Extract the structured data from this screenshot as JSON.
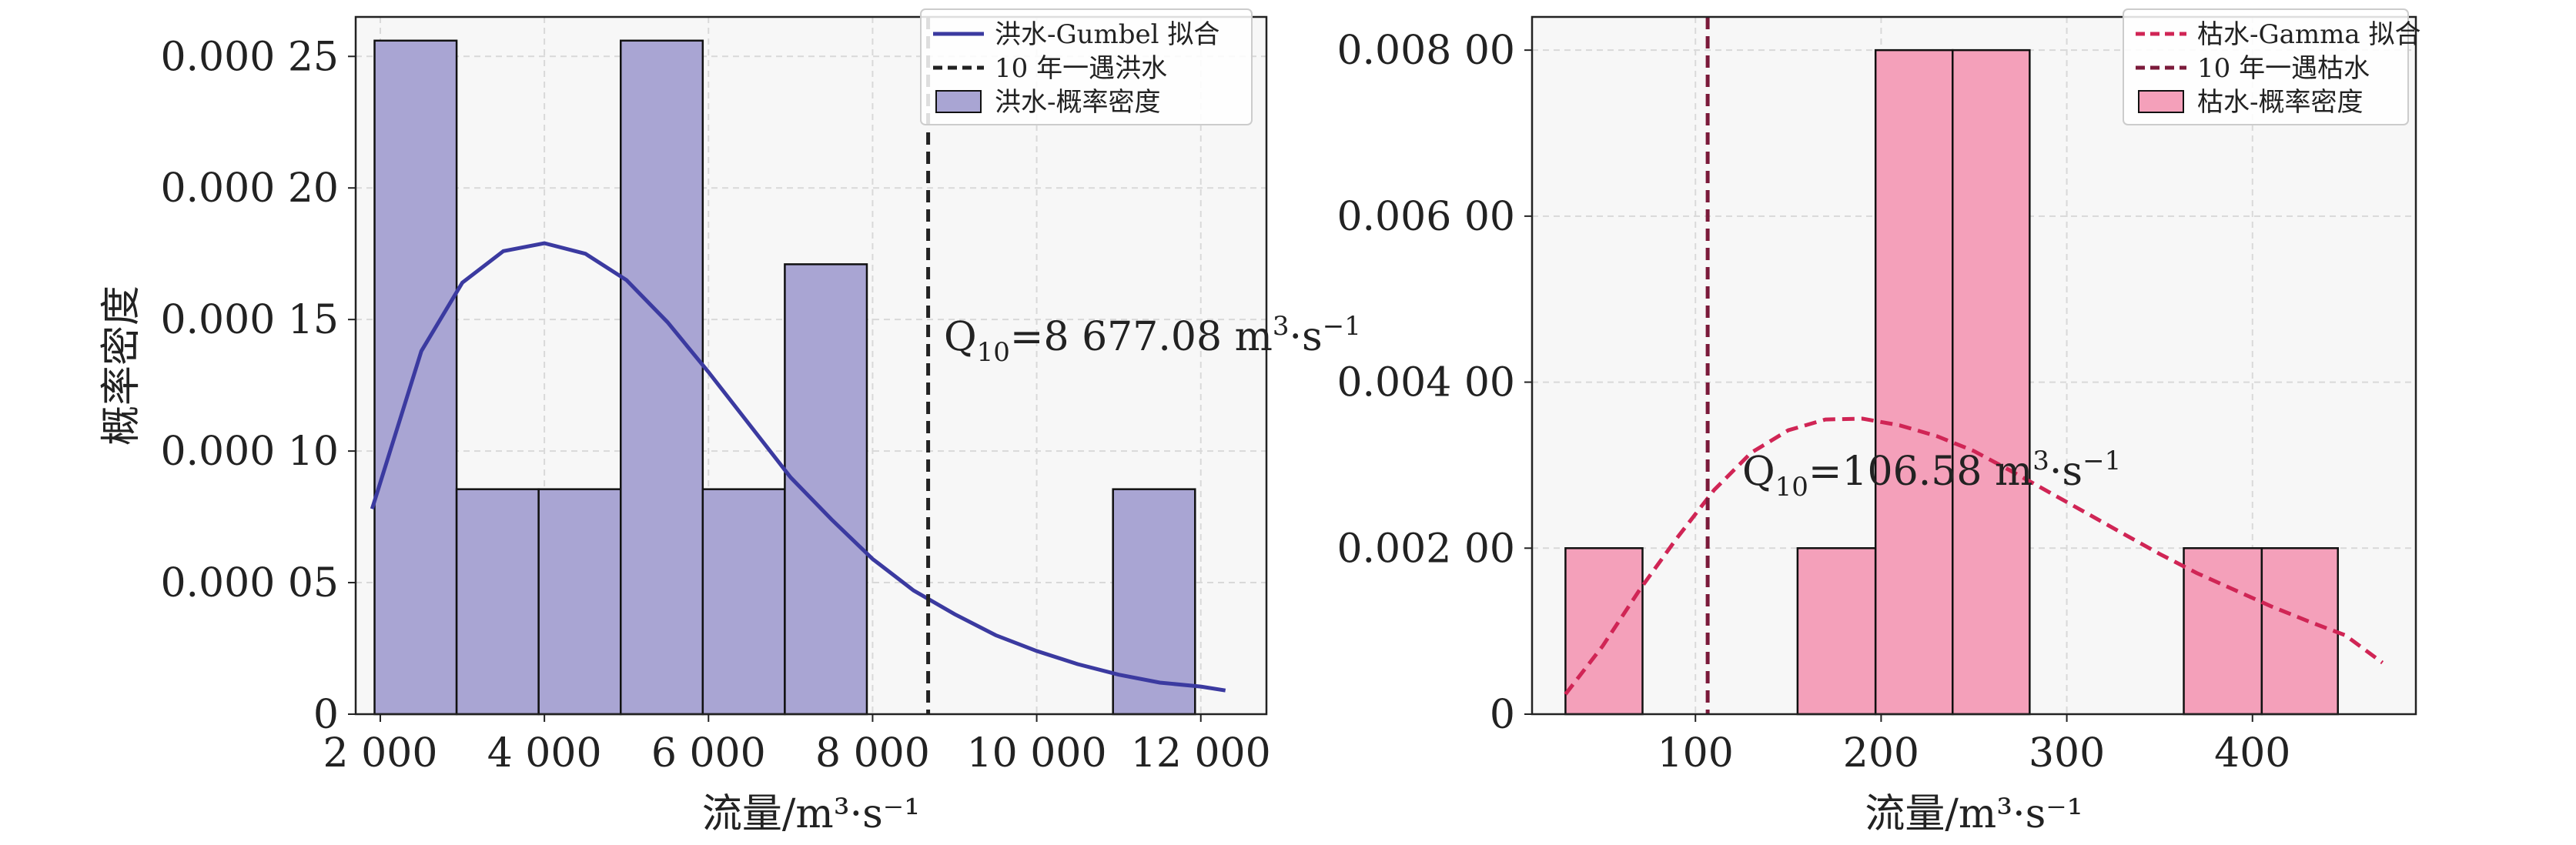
{
  "chart_data": [
    {
      "type": "histogram",
      "panel": "left",
      "xlabel": "流量/m³·s⁻¹",
      "ylabel": "概率密度",
      "xlim": [
        1700,
        12800
      ],
      "ylim": [
        0,
        0.000265
      ],
      "grid": true,
      "legend_position": "top-right",
      "xticks": [
        2000,
        4000,
        6000,
        8000,
        10000,
        12000
      ],
      "xtick_labels": [
        "2 000",
        "4 000",
        "6 000",
        "8 000",
        "10 000",
        "12 000"
      ],
      "yticks": [
        0,
        5e-05,
        0.0001,
        0.00015,
        0.0002,
        0.00025
      ],
      "ytick_labels": [
        "0",
        "0.000 05",
        "0.000 10",
        "0.000 15",
        "0.000 20",
        "0.000 25"
      ],
      "bins": [
        {
          "x0": 1930,
          "x1": 2930,
          "density": 0.000256
        },
        {
          "x0": 2930,
          "x1": 3930,
          "density": 8.55e-05
        },
        {
          "x0": 3930,
          "x1": 4930,
          "density": 8.55e-05
        },
        {
          "x0": 4930,
          "x1": 5930,
          "density": 0.000256
        },
        {
          "x0": 5930,
          "x1": 6930,
          "density": 8.55e-05
        },
        {
          "x0": 6930,
          "x1": 7930,
          "density": 0.000171
        },
        {
          "x0": 10930,
          "x1": 11930,
          "density": 8.55e-05
        }
      ],
      "fit_curve": {
        "name": "洪水-Gumbel 拟合",
        "color": "#3b3aa0",
        "x": [
          1900,
          2500,
          3000,
          3500,
          4000,
          4500,
          5000,
          5500,
          6000,
          6500,
          7000,
          7500,
          8000,
          8500,
          9000,
          9500,
          10000,
          10500,
          11000,
          11500,
          12000,
          12300
        ],
        "y": [
          7.8e-05,
          0.000138,
          0.000164,
          0.000176,
          0.000179,
          0.000175,
          0.000165,
          0.000149,
          0.00013,
          0.00011,
          9e-05,
          7.4e-05,
          5.9e-05,
          4.7e-05,
          3.8e-05,
          3e-05,
          2.4e-05,
          1.9e-05,
          1.5e-05,
          1.2e-05,
          1.05e-05,
          9e-06
        ]
      },
      "vline": {
        "name": "10 年一遇洪水",
        "x": 8677.08,
        "color": "#222222"
      },
      "annotation": {
        "prefix": "Q",
        "sub": "10",
        "value_text": "=8 677.08 m",
        "sup": "3",
        "unit_tail": "·s",
        "sup2": "−1"
      },
      "legend": [
        {
          "label": "洪水-Gumbel 拟合",
          "kind": "line",
          "color": "#3b3aa0"
        },
        {
          "label": "10 年一遇洪水",
          "kind": "dash",
          "color": "#222222"
        },
        {
          "label": "洪水-概率密度",
          "kind": "patch",
          "color": "#a9a5d3"
        }
      ],
      "bar_color": "#a9a5d3"
    },
    {
      "type": "histogram",
      "panel": "right",
      "xlabel": "流量/m³·s⁻¹",
      "ylabel": "",
      "xlim": [
        12,
        488
      ],
      "ylim": [
        0,
        0.0084
      ],
      "grid": true,
      "legend_position": "top-right",
      "xticks": [
        100,
        200,
        300,
        400
      ],
      "xtick_labels": [
        "100",
        "200",
        "300",
        "400"
      ],
      "yticks": [
        0,
        0.002,
        0.004,
        0.006,
        0.008
      ],
      "ytick_labels": [
        "0",
        "0.002 00",
        "0.004 00",
        "0.006 00",
        "0.008 00"
      ],
      "bins": [
        {
          "x0": 30,
          "x1": 71.5,
          "density": 0.002
        },
        {
          "x0": 155,
          "x1": 197,
          "density": 0.002
        },
        {
          "x0": 197,
          "x1": 238.5,
          "density": 0.008
        },
        {
          "x0": 238.5,
          "x1": 280,
          "density": 0.008
        },
        {
          "x0": 363,
          "x1": 405,
          "density": 0.002
        },
        {
          "x0": 405,
          "x1": 446,
          "density": 0.002
        }
      ],
      "fit_curve": {
        "name": "枯水-Gamma 拟合",
        "color": "#d02555",
        "x": [
          30,
          50,
          70,
          90,
          110,
          130,
          150,
          170,
          190,
          210,
          230,
          250,
          270,
          290,
          310,
          330,
          350,
          370,
          390,
          410,
          430,
          450,
          470
        ],
        "y": [
          0.00024,
          0.00082,
          0.0015,
          0.00212,
          0.0027,
          0.00315,
          0.00342,
          0.00355,
          0.00356,
          0.00348,
          0.00335,
          0.00317,
          0.00293,
          0.00268,
          0.00243,
          0.00218,
          0.00193,
          0.0017,
          0.0015,
          0.0013,
          0.00112,
          0.00095,
          0.00062
        ]
      },
      "vline": {
        "name": "10 年一遇枯水",
        "x": 106.58,
        "color": "#7b1a3a"
      },
      "annotation": {
        "prefix": "Q",
        "sub": "10",
        "value_text": "=106.58 m",
        "sup": "3",
        "unit_tail": "·s",
        "sup2": "−1"
      },
      "legend": [
        {
          "label": "枯水-Gamma 拟合",
          "kind": "dash",
          "color": "#d02555"
        },
        {
          "label": "10 年一遇枯水",
          "kind": "dash",
          "color": "#7b1a3a"
        },
        {
          "label": "枯水-概率密度",
          "kind": "patch",
          "color": "#f4a0ba"
        }
      ],
      "bar_color": "#f4a0ba"
    }
  ]
}
